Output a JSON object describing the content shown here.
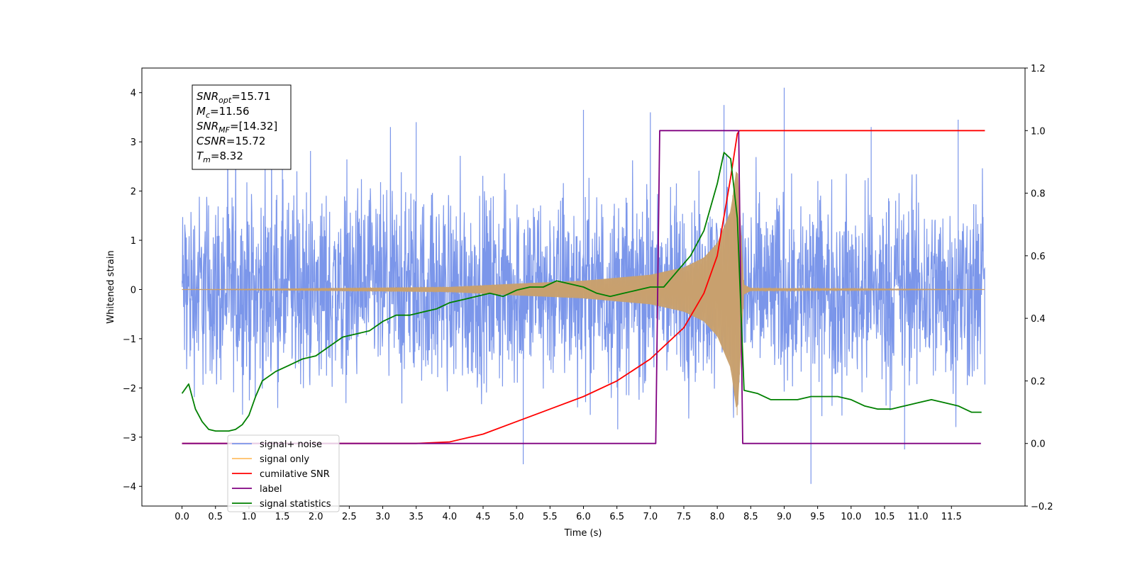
{
  "chart_data": {
    "type": "line",
    "title": "",
    "xlabel": "Time (s)",
    "ylabel": "Whitened strain",
    "y2label": "",
    "xlim": [
      -0.6,
      12.6
    ],
    "ylim": [
      -4.4,
      4.5
    ],
    "y2lim": [
      -0.2,
      1.2
    ],
    "x_ticks": [
      "0.0",
      "0.5",
      "1.0",
      "1.5",
      "2.0",
      "2.5",
      "3.0",
      "3.5",
      "4.0",
      "4.5",
      "5.0",
      "5.5",
      "6.0",
      "6.5",
      "7.0",
      "7.5",
      "8.0",
      "8.5",
      "9.0",
      "9.5",
      "10.0",
      "10.5",
      "11.0",
      "11.5"
    ],
    "y_ticks": [
      "-4",
      "-3",
      "-2",
      "-1",
      "0",
      "1",
      "2",
      "3",
      "4"
    ],
    "y2_ticks": [
      "-0.2",
      "0.0",
      "0.2",
      "0.4",
      "0.6",
      "0.8",
      "1.0",
      "1.2"
    ],
    "grid": false,
    "legend_position": "lower-left",
    "annotation": {
      "lines": [
        {
          "base": "SNR",
          "sub": "opt",
          "rest": "=15.71"
        },
        {
          "base": "M",
          "sub": "c",
          "rest": "=11.56"
        },
        {
          "base": "SNR",
          "sub": "MF",
          "rest": "=[14.32]"
        },
        {
          "base": "CSNR",
          "sub": "",
          "rest": "=15.72"
        },
        {
          "base": "T",
          "sub": "m",
          "rest": "=8.32"
        }
      ]
    },
    "legend": [
      {
        "label": "signal+ noise",
        "color": "#7b96ea"
      },
      {
        "label": "signal only",
        "color": "#ffbf66"
      },
      {
        "label": "cumilative SNR",
        "color": "#ff0000"
      },
      {
        "label": "label",
        "color": "#800080"
      },
      {
        "label": "signal statistics",
        "color": "#008000"
      }
    ],
    "series": [
      {
        "name": "signal+ noise",
        "axis": "left",
        "color": "#7b96ea",
        "x_range": [
          0.0,
          12.0
        ],
        "noise_band": [
          -1.4,
          1.4
        ],
        "spikes": [
          {
            "x": 1.5,
            "y": 3.5
          },
          {
            "x": 3.5,
            "y": 3.4
          },
          {
            "x": 5.1,
            "y": -3.55
          },
          {
            "x": 6.0,
            "y": 3.65
          },
          {
            "x": 7.0,
            "y": 3.6
          },
          {
            "x": 8.1,
            "y": 3.75
          },
          {
            "x": 9.0,
            "y": 4.1
          },
          {
            "x": 9.4,
            "y": -3.95
          },
          {
            "x": 10.3,
            "y": 3.3
          },
          {
            "x": 10.8,
            "y": -3.25
          },
          {
            "x": 11.6,
            "y": 3.45
          }
        ]
      },
      {
        "name": "signal only",
        "axis": "left",
        "color": "#c8a06e",
        "envelope": {
          "x": [
            0.0,
            4.0,
            5.0,
            6.0,
            7.0,
            7.5,
            7.8,
            8.0,
            8.2,
            8.3,
            8.4,
            8.5,
            12.0
          ],
          "amp": [
            0.0,
            0.05,
            0.12,
            0.18,
            0.3,
            0.45,
            0.65,
            0.95,
            1.6,
            2.6,
            0.1,
            0.03,
            0.0
          ]
        }
      },
      {
        "name": "cumilative SNR",
        "axis": "right",
        "color": "#ff0000",
        "x": [
          0.0,
          1.0,
          2.0,
          3.0,
          3.5,
          4.0,
          4.5,
          5.0,
          5.5,
          6.0,
          6.5,
          7.0,
          7.5,
          7.8,
          8.0,
          8.2,
          8.3,
          8.33,
          12.0
        ],
        "values": [
          0.0,
          0.0,
          0.0,
          0.0,
          0.0,
          0.005,
          0.03,
          0.07,
          0.11,
          0.15,
          0.2,
          0.27,
          0.37,
          0.48,
          0.6,
          0.85,
          0.99,
          1.0,
          1.0
        ]
      },
      {
        "name": "label",
        "axis": "right",
        "color": "#800080",
        "x": [
          0.0,
          7.08,
          7.14,
          8.32,
          8.38,
          11.94
        ],
        "values": [
          0.0,
          0.0,
          1.0,
          1.0,
          0.0,
          0.0
        ]
      },
      {
        "name": "signal statistics",
        "axis": "right",
        "color": "#008000",
        "x": [
          0.0,
          0.1,
          0.2,
          0.3,
          0.4,
          0.5,
          0.7,
          0.8,
          0.9,
          1.0,
          1.1,
          1.2,
          1.4,
          1.6,
          1.8,
          2.0,
          2.2,
          2.4,
          2.6,
          2.8,
          3.0,
          3.2,
          3.4,
          3.6,
          3.8,
          4.0,
          4.2,
          4.4,
          4.6,
          4.8,
          5.0,
          5.2,
          5.4,
          5.6,
          5.8,
          6.0,
          6.2,
          6.4,
          6.6,
          6.8,
          7.0,
          7.2,
          7.4,
          7.6,
          7.8,
          8.0,
          8.1,
          8.2,
          8.3,
          8.4,
          8.6,
          8.8,
          9.0,
          9.2,
          9.4,
          9.6,
          9.8,
          10.0,
          10.2,
          10.4,
          10.6,
          10.8,
          11.0,
          11.2,
          11.4,
          11.6,
          11.8,
          11.95
        ],
        "values": [
          0.16,
          0.19,
          0.11,
          0.07,
          0.045,
          0.04,
          0.04,
          0.045,
          0.06,
          0.09,
          0.15,
          0.2,
          0.23,
          0.25,
          0.27,
          0.28,
          0.31,
          0.34,
          0.35,
          0.36,
          0.39,
          0.41,
          0.41,
          0.42,
          0.43,
          0.45,
          0.46,
          0.47,
          0.48,
          0.47,
          0.49,
          0.5,
          0.5,
          0.52,
          0.51,
          0.5,
          0.48,
          0.47,
          0.48,
          0.49,
          0.5,
          0.5,
          0.55,
          0.6,
          0.68,
          0.83,
          0.93,
          0.91,
          0.72,
          0.17,
          0.16,
          0.14,
          0.14,
          0.14,
          0.15,
          0.15,
          0.15,
          0.14,
          0.12,
          0.11,
          0.11,
          0.12,
          0.13,
          0.14,
          0.13,
          0.12,
          0.1,
          0.1
        ]
      }
    ]
  }
}
